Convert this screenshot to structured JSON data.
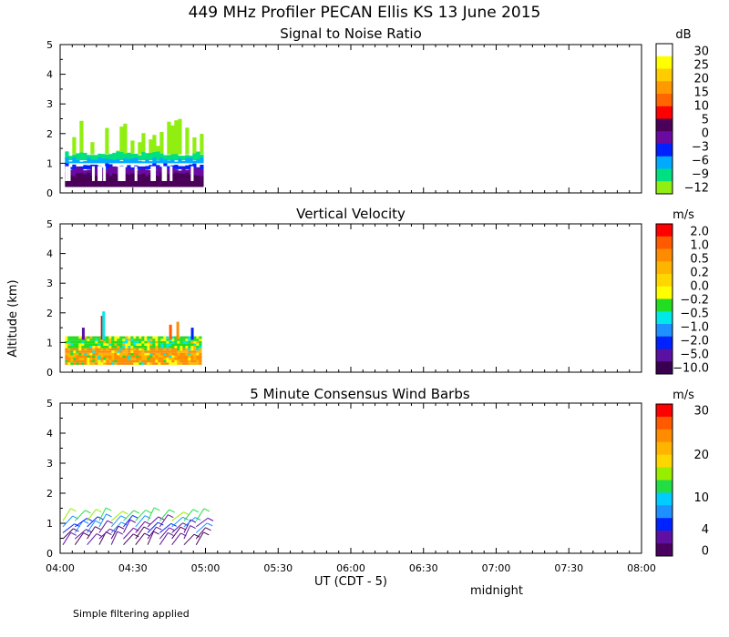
{
  "title": "449 MHz Profiler PECAN Ellis KS 13 June 2015",
  "shared_ylabel": "Altitude (km)",
  "xlabel": "UT  (CDT - 5)",
  "x_note": "midnight",
  "footnote": "Simple filtering applied",
  "x_ticks": [
    "04:00",
    "04:30",
    "05:00",
    "05:30",
    "06:00",
    "06:30",
    "07:00",
    "07:30",
    "08:00"
  ],
  "chart_data": [
    {
      "type": "heatmap",
      "title": "Signal to Noise Ratio",
      "unit": "dB",
      "xlim": [
        "04:00",
        "08:00"
      ],
      "ylim": [
        0,
        5
      ],
      "yticks": [
        "0",
        "1",
        "2",
        "3",
        "4",
        "5"
      ],
      "data_extent": {
        "time_start": "04:02",
        "time_end": "04:58",
        "alt_min_km": 0.2,
        "alt_max_km": 2.5
      },
      "layers": [
        {
          "alt_range_km": [
            0.2,
            0.7
          ],
          "snr_db": 3
        },
        {
          "alt_range_km": [
            0.5,
            0.9
          ],
          "snr_db": 0
        },
        {
          "alt_range_km": [
            0.8,
            1.0
          ],
          "snr_db": -3
        },
        {
          "alt_range_km": [
            1.0,
            1.2
          ],
          "snr_db": -6
        },
        {
          "alt_range_km": [
            1.1,
            1.4
          ],
          "snr_db": -9
        },
        {
          "alt_range_km": [
            1.3,
            2.5
          ],
          "snr_db": -12
        }
      ],
      "colorbar": {
        "labels": [
          "30",
          "25",
          "20",
          "15",
          "10",
          "5",
          "0",
          "−3",
          "−6",
          "−9",
          "−12"
        ],
        "colors": [
          "#ffffff",
          "#ffff00",
          "#ffcc00",
          "#ff9900",
          "#ff6600",
          "#ff0000",
          "#4a0058",
          "#6a0aa0",
          "#0020ff",
          "#00aaff",
          "#00e080",
          "#90ee10"
        ]
      }
    },
    {
      "type": "heatmap",
      "title": "Vertical Velocity",
      "unit": "m/s",
      "xlim": [
        "04:00",
        "08:00"
      ],
      "ylim": [
        0,
        5
      ],
      "yticks": [
        "0",
        "1",
        "2",
        "3",
        "4",
        "5"
      ],
      "data_extent": {
        "time_start": "04:02",
        "time_end": "04:58",
        "alt_min_km": 0.2,
        "alt_max_km": 2.0
      },
      "dominant_values_m_s": {
        "below_0.8_km": 0.5,
        "0.8_to_1.2_km": -0.2
      },
      "colorbar": {
        "labels": [
          "2.0",
          "1.0",
          "0.5",
          "0.2",
          "0.0",
          "−0.2",
          "−0.5",
          "−1.0",
          "−2.0",
          "−5.0",
          "−10.0"
        ],
        "colors": [
          "#ff0000",
          "#ff5a00",
          "#ff8c00",
          "#ffb400",
          "#ffd700",
          "#ffff00",
          "#22dd22",
          "#00e8e8",
          "#1e90ff",
          "#0022ff",
          "#5a10a0",
          "#3a0050"
        ]
      }
    },
    {
      "type": "scatter",
      "title": "5 Minute Consensus Wind Barbs",
      "unit": "m/s",
      "xlim": [
        "04:00",
        "08:00"
      ],
      "ylim": [
        0,
        5
      ],
      "yticks": [
        "0",
        "1",
        "2",
        "3",
        "4",
        "5"
      ],
      "barb_times": [
        "04:00",
        "04:05",
        "04:10",
        "04:15",
        "04:20",
        "04:25",
        "04:30",
        "04:35",
        "04:40",
        "04:45",
        "04:50",
        "04:55"
      ],
      "barb_altitudes_km": [
        0.1,
        0.3,
        0.5,
        0.7,
        0.9
      ],
      "colorbar": {
        "labels": [
          "30",
          "20",
          "10",
          "4",
          "0"
        ],
        "colors": [
          "#ff0000",
          "#ff5a00",
          "#ff8c00",
          "#ffb400",
          "#ffd700",
          "#99ee00",
          "#22dd44",
          "#00ccff",
          "#1e90ff",
          "#0022ff",
          "#6010a0",
          "#4a0060"
        ]
      }
    }
  ]
}
